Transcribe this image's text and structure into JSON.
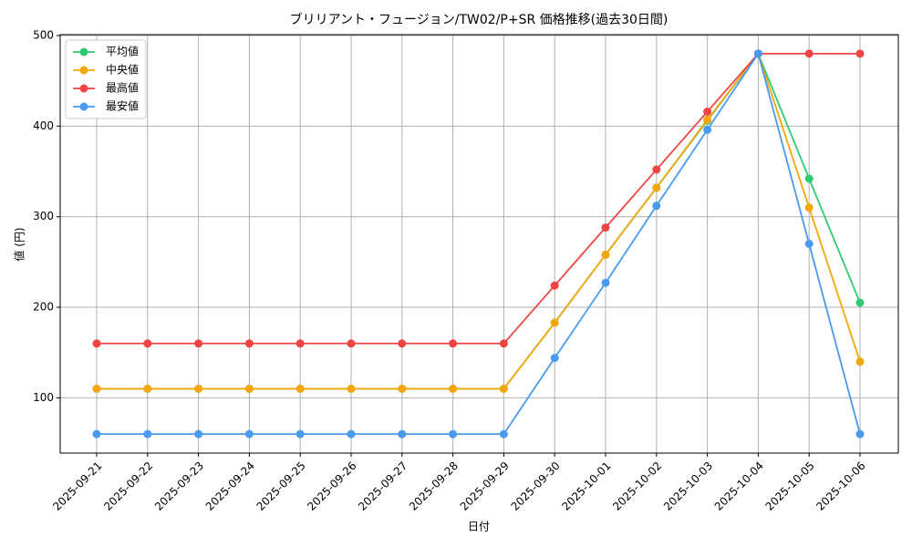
{
  "chart_data": {
    "type": "line",
    "title": "ブリリアント・フュージョン/TW02/P+SR 価格推移(過去30日間)",
    "xlabel": "日付",
    "ylabel": "値 (円)",
    "categories": [
      "2025-09-21",
      "2025-09-22",
      "2025-09-23",
      "2025-09-24",
      "2025-09-25",
      "2025-09-26",
      "2025-09-27",
      "2025-09-28",
      "2025-09-29",
      "2025-09-30",
      "2025-10-01",
      "2025-10-02",
      "2025-10-03",
      "2025-10-04",
      "2025-10-05",
      "2025-10-06"
    ],
    "series": [
      {
        "name": "平均値",
        "color": "#2ecc71",
        "values": [
          110,
          110,
          110,
          110,
          110,
          110,
          110,
          110,
          110,
          183,
          258,
          332,
          406,
          480,
          342,
          205
        ]
      },
      {
        "name": "中央値",
        "color": "#f4a60b",
        "values": [
          110,
          110,
          110,
          110,
          110,
          110,
          110,
          110,
          110,
          183,
          258,
          332,
          407,
          480,
          310,
          140
        ]
      },
      {
        "name": "最高値",
        "color": "#ef4444",
        "values": [
          160,
          160,
          160,
          160,
          160,
          160,
          160,
          160,
          160,
          224,
          288,
          352,
          416,
          480,
          480,
          480
        ]
      },
      {
        "name": "最安値",
        "color": "#4a9aef",
        "values": [
          60,
          60,
          60,
          60,
          60,
          60,
          60,
          60,
          60,
          144,
          227,
          312,
          396,
          480,
          270,
          60
        ]
      }
    ],
    "ylim": [
      39,
      501
    ],
    "yticks": [
      100,
      200,
      300,
      400,
      500
    ],
    "grid": true,
    "legend": "upper left"
  }
}
